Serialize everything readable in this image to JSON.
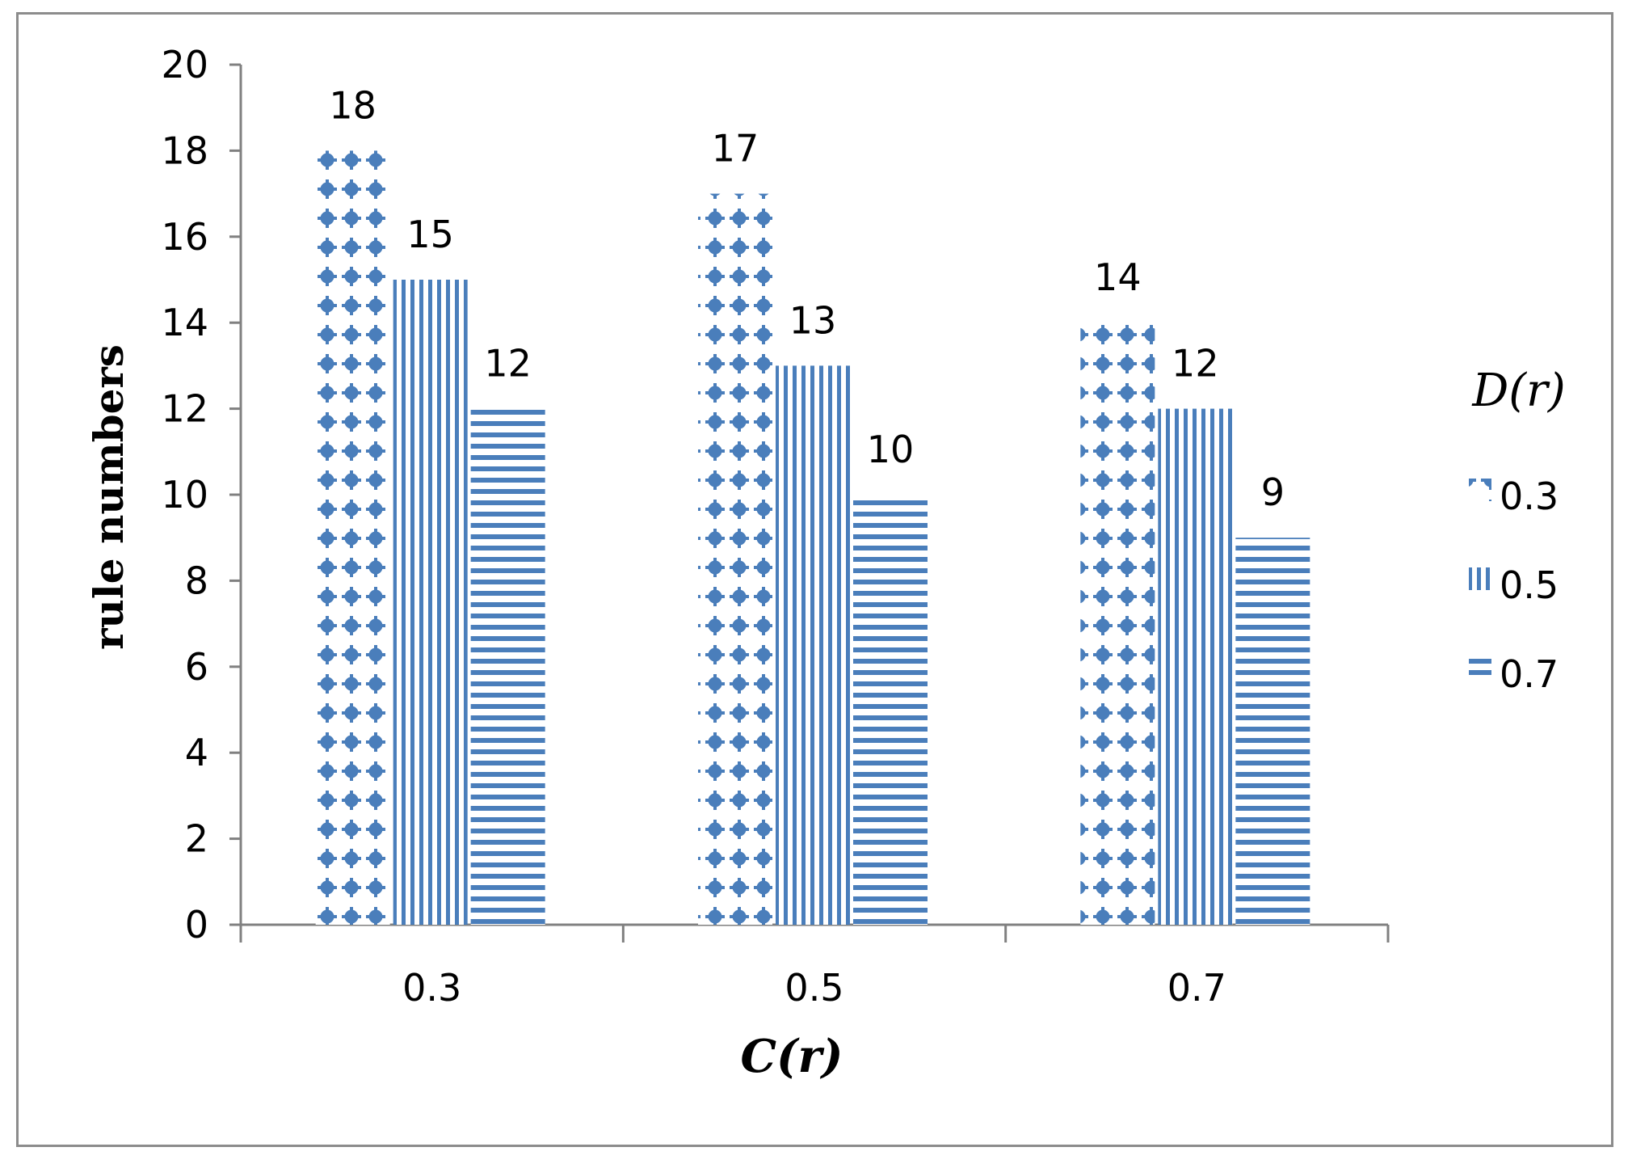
{
  "chart_data": {
    "type": "bar",
    "categories": [
      "0.3",
      "0.5",
      "0.7"
    ],
    "series": [
      {
        "name": "0.3",
        "values": [
          18,
          17,
          14
        ],
        "pattern": "dots"
      },
      {
        "name": "0.5",
        "values": [
          15,
          13,
          12
        ],
        "pattern": "vertical-lines"
      },
      {
        "name": "0.7",
        "values": [
          12,
          10,
          9
        ],
        "pattern": "horizontal-lines"
      }
    ],
    "data_labels": [
      [
        "18",
        "17",
        "14"
      ],
      [
        "15",
        "13",
        "12"
      ],
      [
        "12",
        "10",
        "9"
      ]
    ],
    "xlabel": "C(r)",
    "ylabel": "rule numbers",
    "ylim": [
      0,
      20
    ],
    "yticks": [
      "0",
      "2",
      "4",
      "6",
      "8",
      "10",
      "12",
      "14",
      "16",
      "18",
      "20"
    ],
    "legend_title": "D(r)",
    "legend_position": "right",
    "grid": false,
    "colors": {
      "bar": "#4a7ebb",
      "axis": "#808080",
      "frame": "#8c8c8c"
    }
  }
}
